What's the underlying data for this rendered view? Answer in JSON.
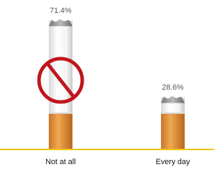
{
  "chart_data": {
    "type": "bar",
    "categories": [
      "Not at all",
      "Every day"
    ],
    "values": [
      71.4,
      28.6
    ],
    "value_labels": [
      "71.4%",
      "28.6%"
    ],
    "color": "#ffffff",
    "filter_color": "#e89a3c",
    "baseline_color": "#f2c200"
  }
}
